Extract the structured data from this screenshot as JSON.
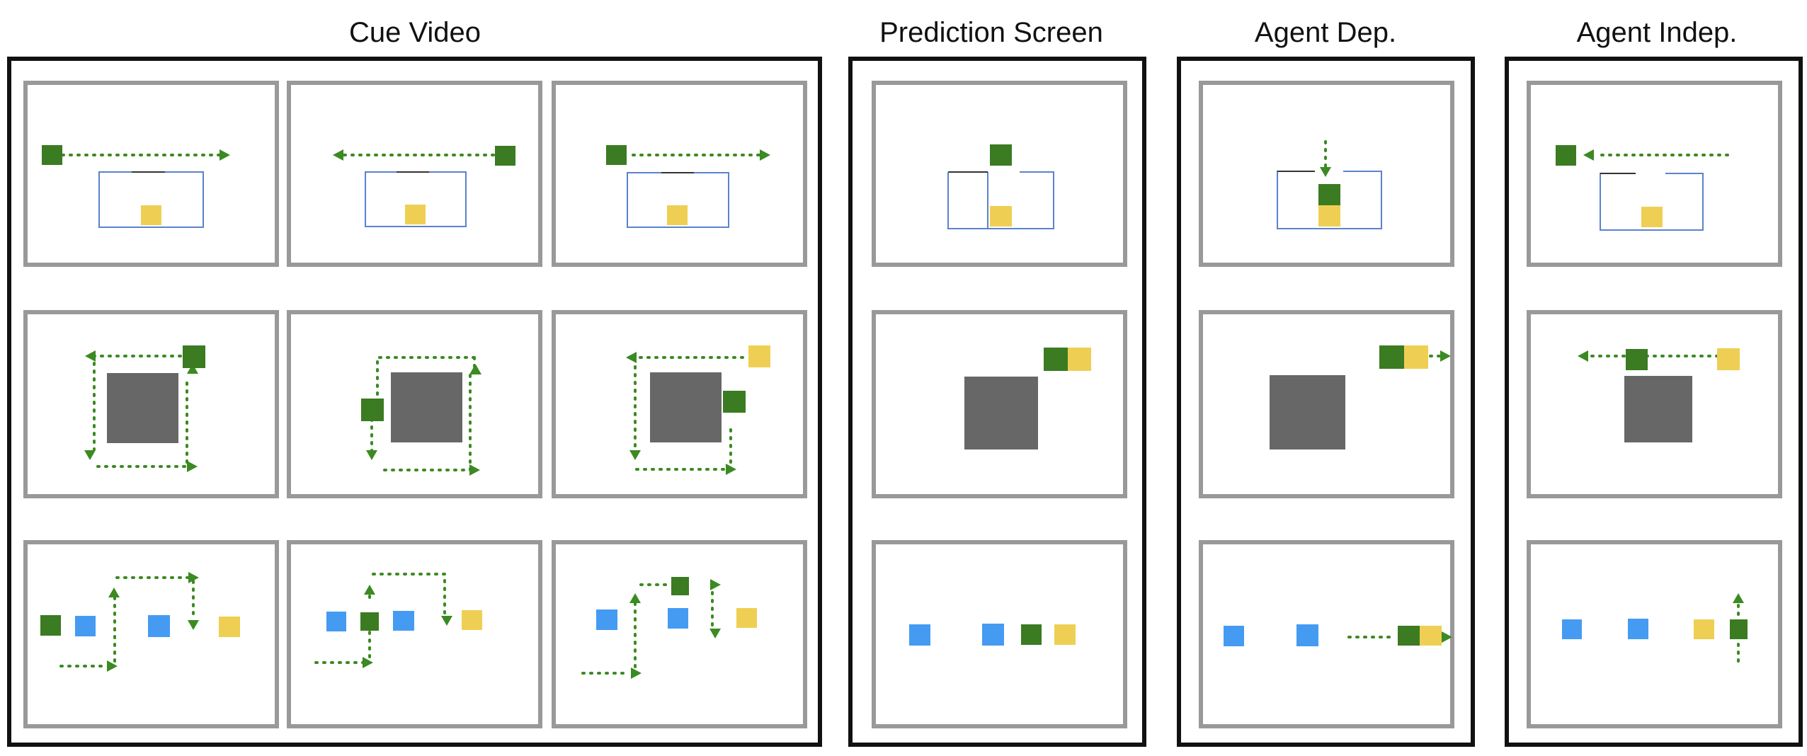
{
  "headers": {
    "cue_video": "Cue Video",
    "prediction_screen": "Prediction Screen",
    "agent_dependent": "Agent Dep.",
    "agent_independent": "Agent Indep."
  },
  "colors": {
    "agent": "#3b7b22",
    "path": "#3b8a22",
    "goal": "#efcf53",
    "other": "#459bf2",
    "obstacle": "#676767",
    "container": "#5b82cc",
    "frame": "#999999",
    "panel_border": "#111111"
  },
  "icons": {
    "agent": "green-square",
    "goal": "yellow-square",
    "other": "blue-square",
    "obstacle": "gray-square",
    "path": "dotted-arrow"
  }
}
